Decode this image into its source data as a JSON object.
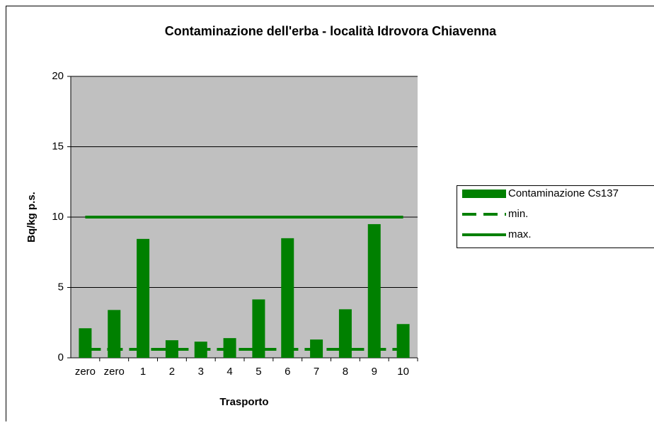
{
  "chart_data": {
    "type": "bar",
    "title": "Contaminazione dell'erba - località Idrovora Chiavenna",
    "x_label": "Trasporto",
    "y_label": "Bq/kg p.s.",
    "categories": [
      "zero",
      "zero",
      "1",
      "2",
      "3",
      "4",
      "5",
      "6",
      "7",
      "8",
      "9",
      "10"
    ],
    "series": [
      {
        "name": "Contaminazione Cs137",
        "type": "bar",
        "color": "#008000",
        "values": [
          2.1,
          3.4,
          8.45,
          1.25,
          1.15,
          1.4,
          4.15,
          8.5,
          1.3,
          3.45,
          9.5,
          2.4
        ]
      },
      {
        "name": "min.",
        "type": "dashed",
        "color": "#008000",
        "values": [
          0.6,
          0.6,
          0.6,
          0.6,
          0.6,
          0.6,
          0.6,
          0.6,
          0.6,
          0.6,
          0.6,
          0.6
        ]
      },
      {
        "name": "max.",
        "type": "line",
        "color": "#008000",
        "values": [
          10,
          10,
          10,
          10,
          10,
          10,
          10,
          10,
          10,
          10,
          10,
          10
        ]
      }
    ],
    "ylim": [
      0,
      20
    ],
    "yticks": [
      0,
      5,
      10,
      15,
      20
    ],
    "grid": true,
    "legend": "right"
  }
}
